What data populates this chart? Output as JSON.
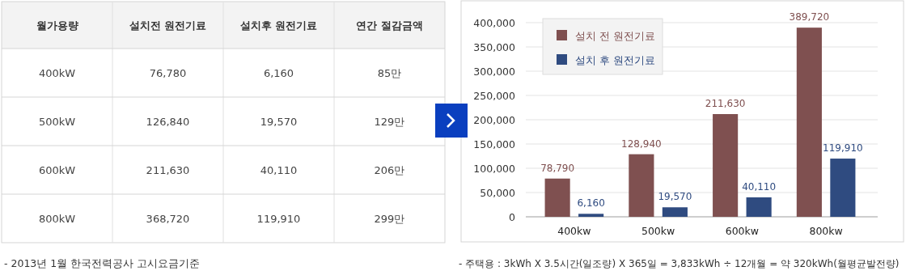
{
  "chart_data": [
    {
      "type": "other",
      "categories": [
        "월가용량",
        "설치전 원전기료",
        "설치후 원전기료",
        "연간 절감금액"
      ],
      "cell_labels": [
        [
          "400kW",
          "76,780",
          "6,160",
          "85만"
        ],
        [
          "500kW",
          "126,840",
          "19,570",
          "129만"
        ],
        [
          "600kW",
          "211,630",
          "40,110",
          "206만"
        ],
        [
          "800kW",
          "368,720",
          "119,910",
          "299만"
        ]
      ],
      "annotations": [
        "-  2013년 1월 한국전력공사 고시요금기준"
      ]
    },
    {
      "type": "bar",
      "categories": [
        "400kw",
        "500kw",
        "600kw",
        "800kw"
      ],
      "series": [
        {
          "name": "설치 전 원전기료",
          "color": "#7f5050",
          "values": [
            78790,
            128940,
            211630,
            389720
          ],
          "value_labels": [
            "78,790",
            "128,940",
            "211,630",
            "389,720"
          ]
        },
        {
          "name": "설치 후 원전기료",
          "color": "#2f4b80",
          "values": [
            6160,
            19570,
            40110,
            119910
          ],
          "value_labels": [
            "6,160",
            "19,570",
            "40,110",
            "119,910"
          ]
        }
      ],
      "ylim": [
        0,
        400000
      ],
      "yticks": [
        {
          "value": 0,
          "label": "0"
        },
        {
          "value": 50000,
          "label": "50,000"
        },
        {
          "value": 100000,
          "label": "100,000"
        },
        {
          "value": 150000,
          "label": "150,000"
        },
        {
          "value": 200000,
          "label": "200,000"
        },
        {
          "value": 250000,
          "label": "250,000"
        },
        {
          "value": 300000,
          "label": "300,000"
        },
        {
          "value": 350000,
          "label": "350,000"
        },
        {
          "value": 400000,
          "label": "400,000"
        }
      ],
      "grid": "y",
      "legend": "top left",
      "annotations": [
        "-  주택용 : 3kWh X 3.5시간(일조량) X 365일 = 3,833kWh ÷ 12개월 = 약 320kWh(월평균발전량)"
      ]
    }
  ]
}
